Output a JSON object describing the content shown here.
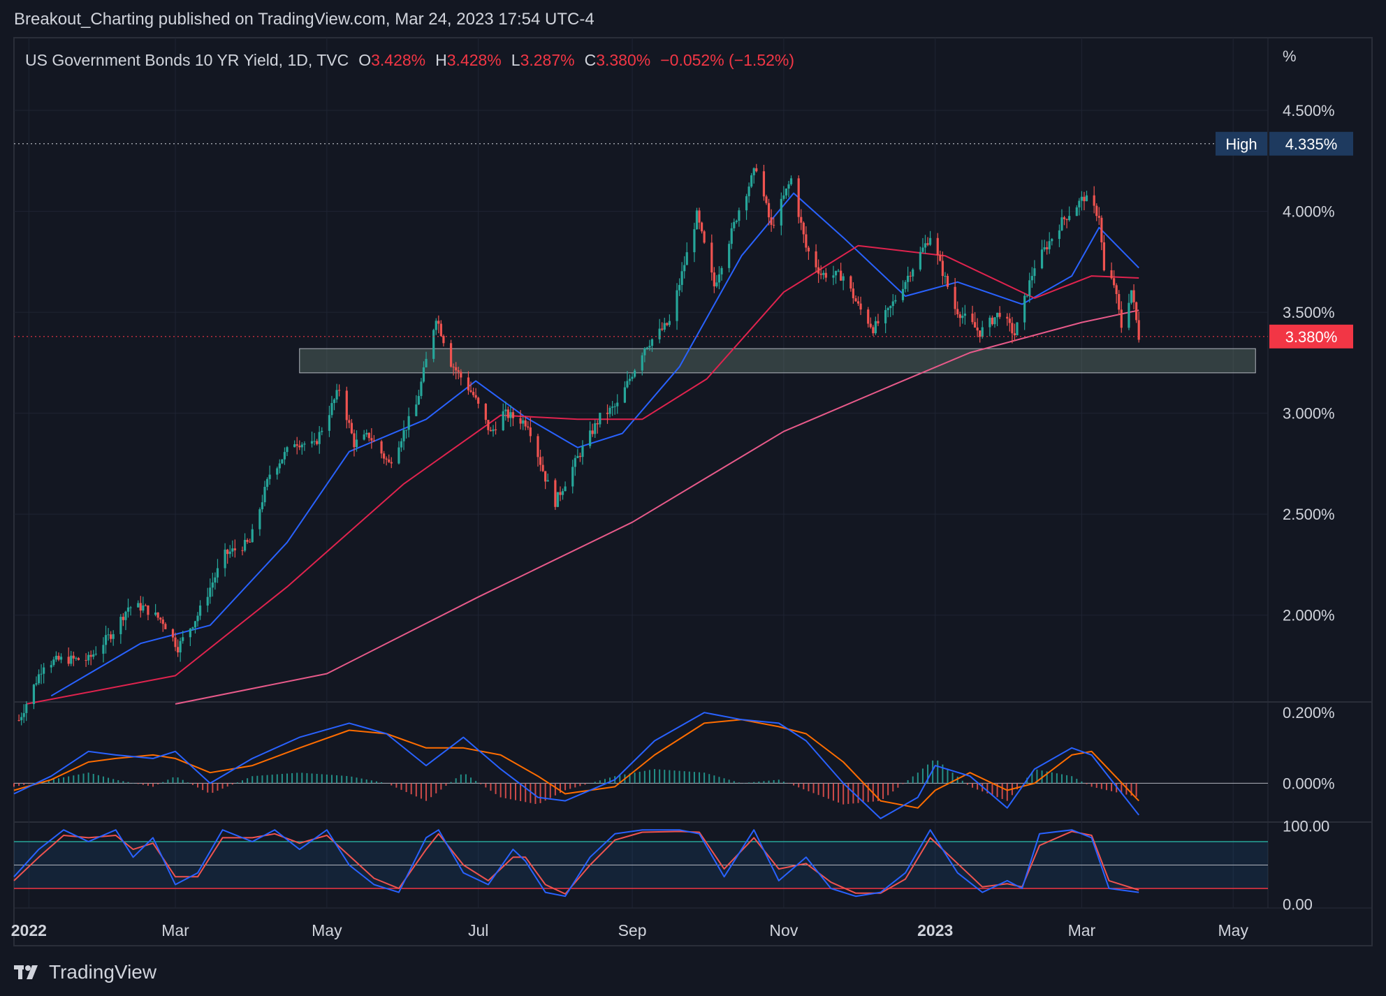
{
  "header": {
    "publisher_line": "Breakout_Charting published on TradingView.com, Mar 24, 2023 17:54 UTC-4"
  },
  "legend": {
    "symbol": "US Government Bonds 10 YR Yield, 1D, TVC",
    "o_label": "O",
    "o_value": "3.428%",
    "h_label": "H",
    "h_value": "3.428%",
    "l_label": "L",
    "l_value": "3.287%",
    "c_label": "C",
    "c_value": "3.380%",
    "change": "−0.052% (−1.52%)"
  },
  "footer": {
    "brand": "TradingView"
  },
  "colors": {
    "background": "#131722",
    "up": "#26a69a",
    "down": "#ef5350",
    "ma_fast": "#2962ff",
    "ma_mid": "#e0234e",
    "ma_slow": "#e85a8a",
    "macd": "#2962ff",
    "signal": "#ff6d00",
    "last_price": "#f23645",
    "high_badge": "#1e3a5f"
  },
  "chart_data": [
    {
      "type": "candlestick",
      "unit_label": "%",
      "y_ticks": [
        "4.500%",
        "4.000%",
        "3.500%",
        "3.000%",
        "2.500%",
        "2.000%"
      ],
      "y_tick_values": [
        4.5,
        4.0,
        3.5,
        3.0,
        2.5,
        2.0
      ],
      "ylim": [
        1.57,
        4.86
      ],
      "x_ticks": [
        "2022",
        "Mar",
        "May",
        "Jul",
        "Sep",
        "Nov",
        "2023",
        "Mar",
        "May"
      ],
      "x_tick_dates": [
        "2022-01-01",
        "2022-03-01",
        "2022-05-01",
        "2022-07-01",
        "2022-09-01",
        "2022-11-01",
        "2023-01-01",
        "2023-03-01",
        "2023-05-01"
      ],
      "x_range": [
        "2021-12-26",
        "2023-05-15"
      ],
      "high_label": "High",
      "high_value": "4.335%",
      "high_level": 4.335,
      "last_value": "3.380%",
      "last_level": 3.38,
      "support_zone": {
        "from": "2022-04-20",
        "to": "2023-05-10",
        "low": 3.2,
        "high": 3.32
      },
      "ohlc_anchors": [
        [
          "2021-12-28",
          1.48
        ],
        [
          "2022-01-07",
          1.76
        ],
        [
          "2022-01-14",
          1.78
        ],
        [
          "2022-01-25",
          1.78
        ],
        [
          "2022-02-04",
          1.92
        ],
        [
          "2022-02-10",
          2.04
        ],
        [
          "2022-02-16",
          2.04
        ],
        [
          "2022-02-24",
          1.97
        ],
        [
          "2022-03-02",
          1.84
        ],
        [
          "2022-03-10",
          2.0
        ],
        [
          "2022-03-21",
          2.3
        ],
        [
          "2022-03-31",
          2.36
        ],
        [
          "2022-04-08",
          2.7
        ],
        [
          "2022-04-18",
          2.86
        ],
        [
          "2022-04-26",
          2.84
        ],
        [
          "2022-05-06",
          3.12
        ],
        [
          "2022-05-12",
          2.85
        ],
        [
          "2022-05-18",
          2.89
        ],
        [
          "2022-05-26",
          2.75
        ],
        [
          "2022-06-06",
          3.04
        ],
        [
          "2022-06-14",
          3.48
        ],
        [
          "2022-06-20",
          3.25
        ],
        [
          "2022-06-29",
          3.09
        ],
        [
          "2022-07-06",
          2.9
        ],
        [
          "2022-07-11",
          3.0
        ],
        [
          "2022-07-21",
          2.95
        ],
        [
          "2022-07-28",
          2.68
        ],
        [
          "2022-08-01",
          2.56
        ],
        [
          "2022-08-10",
          2.78
        ],
        [
          "2022-08-19",
          2.98
        ],
        [
          "2022-08-26",
          3.04
        ],
        [
          "2022-09-06",
          3.33
        ],
        [
          "2022-09-16",
          3.45
        ],
        [
          "2022-09-27",
          3.98
        ],
        [
          "2022-10-04",
          3.63
        ],
        [
          "2022-10-14",
          4.01
        ],
        [
          "2022-10-21",
          4.22
        ],
        [
          "2022-10-27",
          3.92
        ],
        [
          "2022-11-04",
          4.16
        ],
        [
          "2022-11-10",
          3.82
        ],
        [
          "2022-11-16",
          3.69
        ],
        [
          "2022-11-25",
          3.68
        ],
        [
          "2022-12-01",
          3.53
        ],
        [
          "2022-12-07",
          3.42
        ],
        [
          "2022-12-13",
          3.5
        ],
        [
          "2022-12-21",
          3.68
        ],
        [
          "2022-12-30",
          3.88
        ],
        [
          "2023-01-09",
          3.52
        ],
        [
          "2023-01-19",
          3.4
        ],
        [
          "2023-01-27",
          3.5
        ],
        [
          "2023-02-02",
          3.39
        ],
        [
          "2023-02-10",
          3.73
        ],
        [
          "2023-02-21",
          3.95
        ],
        [
          "2023-03-02",
          4.07
        ],
        [
          "2023-03-08",
          3.98
        ],
        [
          "2023-03-10",
          3.7
        ],
        [
          "2023-03-14",
          3.64
        ],
        [
          "2023-03-17",
          3.43
        ],
        [
          "2023-03-21",
          3.61
        ],
        [
          "2023-03-24",
          3.38
        ]
      ],
      "moving_averages": [
        {
          "color": "#2962ff",
          "points": [
            [
              "2022-01-10",
              1.6
            ],
            [
              "2022-02-15",
              1.86
            ],
            [
              "2022-03-15",
              1.95
            ],
            [
              "2022-04-15",
              2.36
            ],
            [
              "2022-05-10",
              2.81
            ],
            [
              "2022-06-10",
              2.97
            ],
            [
              "2022-06-30",
              3.16
            ],
            [
              "2022-07-20",
              2.98
            ],
            [
              "2022-08-10",
              2.83
            ],
            [
              "2022-08-28",
              2.9
            ],
            [
              "2022-09-20",
              3.23
            ],
            [
              "2022-10-15",
              3.78
            ],
            [
              "2022-11-05",
              4.09
            ],
            [
              "2022-11-25",
              3.87
            ],
            [
              "2022-12-20",
              3.58
            ],
            [
              "2023-01-10",
              3.65
            ],
            [
              "2023-02-05",
              3.54
            ],
            [
              "2023-02-25",
              3.68
            ],
            [
              "2023-03-08",
              3.92
            ],
            [
              "2023-03-24",
              3.72
            ]
          ]
        },
        {
          "color": "#e0234e",
          "points": [
            [
              "2021-12-31",
              1.56
            ],
            [
              "2022-03-01",
              1.7
            ],
            [
              "2022-04-15",
              2.14
            ],
            [
              "2022-06-01",
              2.65
            ],
            [
              "2022-07-10",
              2.99
            ],
            [
              "2022-08-10",
              2.97
            ],
            [
              "2022-09-05",
              2.97
            ],
            [
              "2022-10-01",
              3.17
            ],
            [
              "2022-11-01",
              3.6
            ],
            [
              "2022-12-01",
              3.83
            ],
            [
              "2023-01-05",
              3.78
            ],
            [
              "2023-02-10",
              3.57
            ],
            [
              "2023-03-05",
              3.68
            ],
            [
              "2023-03-24",
              3.67
            ]
          ]
        },
        {
          "color": "#e85a8a",
          "points": [
            [
              "2022-03-01",
              1.56
            ],
            [
              "2022-05-01",
              1.71
            ],
            [
              "2022-07-01",
              2.09
            ],
            [
              "2022-09-01",
              2.46
            ],
            [
              "2022-11-01",
              2.91
            ],
            [
              "2022-12-15",
              3.14
            ],
            [
              "2023-01-15",
              3.3
            ],
            [
              "2023-03-01",
              3.45
            ],
            [
              "2023-03-24",
              3.51
            ]
          ]
        }
      ]
    },
    {
      "type": "macd",
      "y_ticks": [
        "0.200%",
        "0.000%"
      ],
      "y_tick_values": [
        0.2,
        0.0
      ],
      "ylim": [
        -0.11,
        0.23
      ],
      "macd_line": [
        [
          "2021-12-26",
          -0.03
        ],
        [
          "2022-01-10",
          0.02
        ],
        [
          "2022-01-25",
          0.09
        ],
        [
          "2022-02-05",
          0.08
        ],
        [
          "2022-02-20",
          0.07
        ],
        [
          "2022-03-01",
          0.09
        ],
        [
          "2022-03-15",
          0.0
        ],
        [
          "2022-04-01",
          0.07
        ],
        [
          "2022-04-20",
          0.13
        ],
        [
          "2022-05-10",
          0.17
        ],
        [
          "2022-05-25",
          0.14
        ],
        [
          "2022-06-10",
          0.05
        ],
        [
          "2022-06-25",
          0.13
        ],
        [
          "2022-07-10",
          0.04
        ],
        [
          "2022-07-25",
          -0.04
        ],
        [
          "2022-08-05",
          -0.05
        ],
        [
          "2022-08-25",
          0.01
        ],
        [
          "2022-09-10",
          0.12
        ],
        [
          "2022-09-30",
          0.2
        ],
        [
          "2022-10-15",
          0.18
        ],
        [
          "2022-10-30",
          0.17
        ],
        [
          "2022-11-10",
          0.12
        ],
        [
          "2022-11-25",
          0.0
        ],
        [
          "2022-12-10",
          -0.1
        ],
        [
          "2022-12-25",
          -0.04
        ],
        [
          "2023-01-01",
          0.05
        ],
        [
          "2023-01-15",
          0.02
        ],
        [
          "2023-01-30",
          -0.07
        ],
        [
          "2023-02-10",
          0.04
        ],
        [
          "2023-02-25",
          0.1
        ],
        [
          "2023-03-05",
          0.08
        ],
        [
          "2023-03-24",
          -0.09
        ]
      ],
      "signal_line": [
        [
          "2021-12-26",
          -0.02
        ],
        [
          "2022-01-10",
          0.01
        ],
        [
          "2022-01-25",
          0.06
        ],
        [
          "2022-02-05",
          0.07
        ],
        [
          "2022-02-20",
          0.08
        ],
        [
          "2022-03-01",
          0.07
        ],
        [
          "2022-03-15",
          0.03
        ],
        [
          "2022-04-01",
          0.05
        ],
        [
          "2022-04-20",
          0.1
        ],
        [
          "2022-05-10",
          0.15
        ],
        [
          "2022-05-25",
          0.14
        ],
        [
          "2022-06-10",
          0.1
        ],
        [
          "2022-06-25",
          0.1
        ],
        [
          "2022-07-10",
          0.08
        ],
        [
          "2022-07-25",
          0.02
        ],
        [
          "2022-08-05",
          -0.03
        ],
        [
          "2022-08-25",
          -0.01
        ],
        [
          "2022-09-10",
          0.08
        ],
        [
          "2022-09-30",
          0.17
        ],
        [
          "2022-10-15",
          0.18
        ],
        [
          "2022-10-30",
          0.16
        ],
        [
          "2022-11-10",
          0.14
        ],
        [
          "2022-11-25",
          0.06
        ],
        [
          "2022-12-10",
          -0.05
        ],
        [
          "2022-12-25",
          -0.07
        ],
        [
          "2023-01-01",
          -0.02
        ],
        [
          "2023-01-15",
          0.03
        ],
        [
          "2023-01-30",
          -0.02
        ],
        [
          "2023-02-10",
          0.0
        ],
        [
          "2023-02-25",
          0.08
        ],
        [
          "2023-03-05",
          0.09
        ],
        [
          "2023-03-24",
          -0.05
        ]
      ]
    },
    {
      "type": "stochastic",
      "y_ticks": [
        "100.00",
        "0.00"
      ],
      "y_tick_values": [
        100,
        0
      ],
      "ylim": [
        -5,
        105
      ],
      "upper_band": 80,
      "middle_band": 50,
      "lower_band": 20,
      "k_line": [
        [
          "2021-12-26",
          35
        ],
        [
          "2022-01-05",
          70
        ],
        [
          "2022-01-15",
          95
        ],
        [
          "2022-01-25",
          80
        ],
        [
          "2022-02-05",
          95
        ],
        [
          "2022-02-12",
          60
        ],
        [
          "2022-02-20",
          85
        ],
        [
          "2022-03-01",
          25
        ],
        [
          "2022-03-10",
          40
        ],
        [
          "2022-03-20",
          95
        ],
        [
          "2022-04-01",
          80
        ],
        [
          "2022-04-10",
          95
        ],
        [
          "2022-04-20",
          70
        ],
        [
          "2022-05-01",
          95
        ],
        [
          "2022-05-10",
          50
        ],
        [
          "2022-05-20",
          25
        ],
        [
          "2022-05-30",
          15
        ],
        [
          "2022-06-10",
          85
        ],
        [
          "2022-06-15",
          95
        ],
        [
          "2022-06-25",
          40
        ],
        [
          "2022-07-05",
          25
        ],
        [
          "2022-07-15",
          70
        ],
        [
          "2022-07-20",
          55
        ],
        [
          "2022-07-28",
          15
        ],
        [
          "2022-08-05",
          10
        ],
        [
          "2022-08-15",
          60
        ],
        [
          "2022-08-25",
          90
        ],
        [
          "2022-09-05",
          95
        ],
        [
          "2022-09-20",
          95
        ],
        [
          "2022-09-28",
          90
        ],
        [
          "2022-10-08",
          35
        ],
        [
          "2022-10-20",
          95
        ],
        [
          "2022-10-30",
          30
        ],
        [
          "2022-11-10",
          60
        ],
        [
          "2022-11-20",
          20
        ],
        [
          "2022-11-30",
          10
        ],
        [
          "2022-12-10",
          15
        ],
        [
          "2022-12-20",
          40
        ],
        [
          "2022-12-30",
          95
        ],
        [
          "2023-01-10",
          40
        ],
        [
          "2023-01-20",
          15
        ],
        [
          "2023-01-30",
          30
        ],
        [
          "2023-02-05",
          20
        ],
        [
          "2023-02-12",
          90
        ],
        [
          "2023-02-25",
          95
        ],
        [
          "2023-03-05",
          85
        ],
        [
          "2023-03-12",
          20
        ],
        [
          "2023-03-24",
          15
        ]
      ],
      "d_line": [
        [
          "2021-12-26",
          30
        ],
        [
          "2022-01-05",
          60
        ],
        [
          "2022-01-15",
          88
        ],
        [
          "2022-01-25",
          85
        ],
        [
          "2022-02-05",
          88
        ],
        [
          "2022-02-12",
          70
        ],
        [
          "2022-02-20",
          78
        ],
        [
          "2022-03-01",
          35
        ],
        [
          "2022-03-10",
          35
        ],
        [
          "2022-03-20",
          85
        ],
        [
          "2022-04-01",
          85
        ],
        [
          "2022-04-10",
          90
        ],
        [
          "2022-04-20",
          78
        ],
        [
          "2022-05-01",
          88
        ],
        [
          "2022-05-10",
          62
        ],
        [
          "2022-05-20",
          33
        ],
        [
          "2022-05-30",
          20
        ],
        [
          "2022-06-10",
          70
        ],
        [
          "2022-06-15",
          90
        ],
        [
          "2022-06-25",
          50
        ],
        [
          "2022-07-05",
          30
        ],
        [
          "2022-07-15",
          60
        ],
        [
          "2022-07-20",
          60
        ],
        [
          "2022-07-28",
          25
        ],
        [
          "2022-08-05",
          13
        ],
        [
          "2022-08-15",
          50
        ],
        [
          "2022-08-25",
          82
        ],
        [
          "2022-09-05",
          92
        ],
        [
          "2022-09-20",
          93
        ],
        [
          "2022-09-28",
          92
        ],
        [
          "2022-10-08",
          45
        ],
        [
          "2022-10-20",
          85
        ],
        [
          "2022-10-30",
          45
        ],
        [
          "2022-11-10",
          52
        ],
        [
          "2022-11-20",
          28
        ],
        [
          "2022-11-30",
          14
        ],
        [
          "2022-12-10",
          14
        ],
        [
          "2022-12-20",
          32
        ],
        [
          "2022-12-30",
          85
        ],
        [
          "2023-01-10",
          52
        ],
        [
          "2023-01-20",
          22
        ],
        [
          "2023-01-30",
          26
        ],
        [
          "2023-02-05",
          22
        ],
        [
          "2023-02-12",
          75
        ],
        [
          "2023-02-25",
          93
        ],
        [
          "2023-03-05",
          88
        ],
        [
          "2023-03-12",
          30
        ],
        [
          "2023-03-24",
          18
        ]
      ]
    }
  ]
}
